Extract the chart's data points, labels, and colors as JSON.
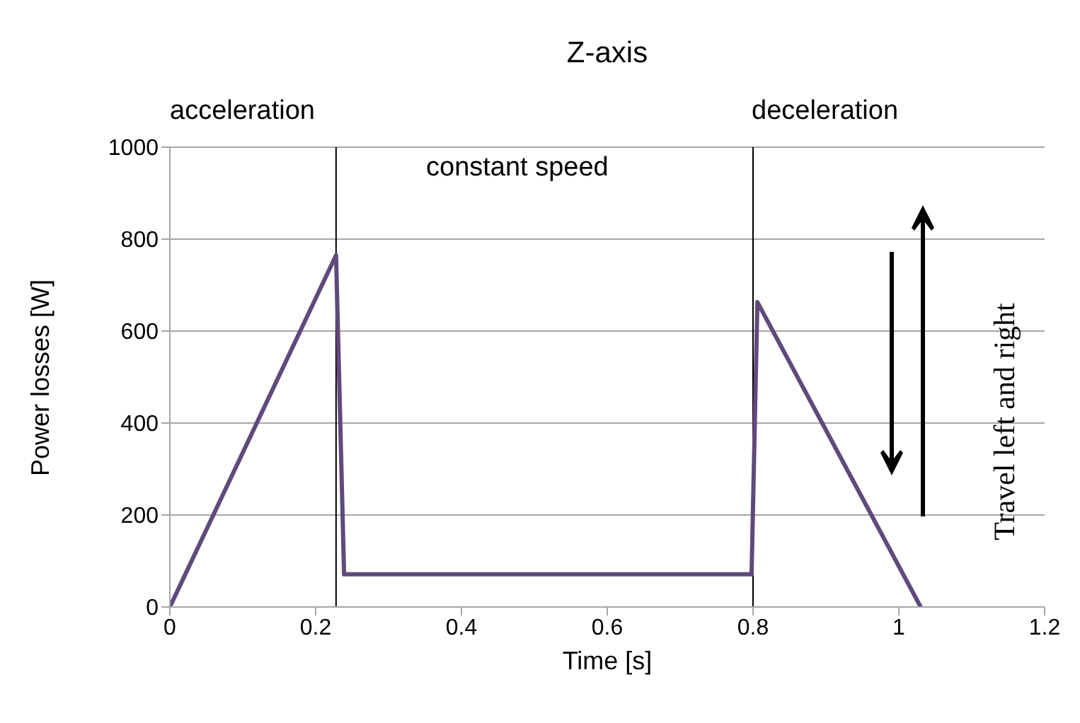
{
  "chart_data": {
    "type": "line",
    "title": "Z-axis",
    "xlabel": "Time [s]",
    "ylabel": "Power losses [W]",
    "series": [
      {
        "color": "#604a7b",
        "x": [
          0,
          0.228,
          0.239,
          0.798,
          0.806,
          1.03
        ],
        "values": [
          0,
          765,
          71,
          71,
          663,
          0
        ]
      }
    ],
    "xlim": [
      0,
      1.2
    ],
    "xticks": [
      0,
      0.2,
      0.4,
      0.6,
      0.8,
      1,
      1.2
    ],
    "ylim": [
      0,
      1000
    ],
    "yticks": [
      0,
      200,
      400,
      600,
      800,
      1000
    ],
    "grid": "y",
    "marker": "none",
    "line_style": "solid",
    "ref_lines": [
      {
        "axis": "x",
        "value": 0.228,
        "color": "#000000"
      },
      {
        "axis": "x",
        "value": 0.8,
        "color": "#000000"
      }
    ],
    "annotations": [
      "acceleration",
      "constant speed",
      "deceleration",
      "Travel left and right"
    ]
  }
}
